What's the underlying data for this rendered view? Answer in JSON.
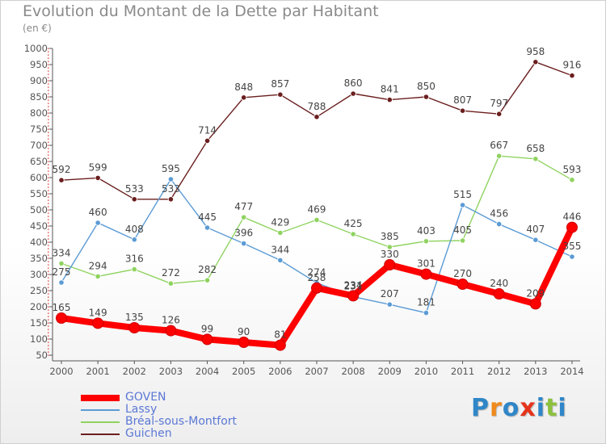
{
  "header": {
    "title": "Evolution du Montant de la Dette par Habitant",
    "unit": "(en €)"
  },
  "logo": {
    "text": "Proxiti",
    "colors": [
      "#2f86c8",
      "#f08a1c",
      "#2f86c8",
      "#e6331b",
      "#2f86c8",
      "#8cc13f",
      "#2f86c8"
    ]
  },
  "chart_data": {
    "type": "line",
    "title": "Evolution du Montant de la Dette par Habitant",
    "ylabel": "(en €)",
    "xlabel": "",
    "x": [
      "2000",
      "2001",
      "2002",
      "2003",
      "2004",
      "2005",
      "2006",
      "2007",
      "2008",
      "2009",
      "2010",
      "2011",
      "2012",
      "2013",
      "2014"
    ],
    "ylim": [
      50,
      1000
    ],
    "yticks": [
      50,
      100,
      150,
      200,
      250,
      300,
      350,
      400,
      450,
      500,
      550,
      600,
      650,
      700,
      750,
      800,
      850,
      900,
      950,
      1000
    ],
    "grid": false,
    "legend_position": "bottom-left",
    "series": [
      {
        "name": "GOVEN",
        "color": "#ff0000",
        "values": [
          165,
          149,
          135,
          126,
          99,
          90,
          81,
          258,
          234,
          330,
          301,
          270,
          240,
          209,
          446
        ]
      },
      {
        "name": "Lassy",
        "color": "#5b9bd5",
        "values": [
          275,
          460,
          408,
          595,
          445,
          396,
          344,
          274,
          231,
          207,
          181,
          515,
          456,
          407,
          355
        ]
      },
      {
        "name": "Bréal-sous-Montfort",
        "color": "#8fd35f",
        "values": [
          334,
          294,
          316,
          272,
          282,
          477,
          429,
          469,
          425,
          385,
          403,
          405,
          667,
          658,
          593
        ]
      },
      {
        "name": "Guichen",
        "color": "#6b1e1e",
        "values": [
          592,
          599,
          533,
          533,
          714,
          848,
          857,
          788,
          860,
          841,
          850,
          807,
          797,
          958,
          916
        ]
      }
    ]
  }
}
